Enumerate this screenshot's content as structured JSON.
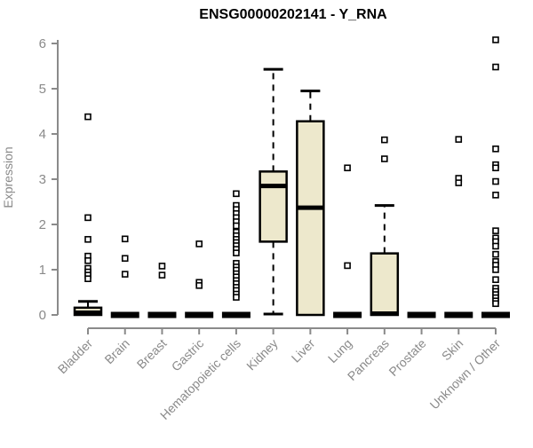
{
  "chart_data": {
    "type": "boxplot",
    "title": "ENSG00000202141 - Y_RNA",
    "ylabel": "Expression",
    "xlabel": "",
    "ylim": [
      0,
      6.1
    ],
    "yticks": [
      0,
      1,
      2,
      3,
      4,
      5,
      6
    ],
    "grid": false,
    "legend": false,
    "marker": "open-square",
    "colors": {
      "box_fill": "#EDE8CC",
      "box_border": "#000000",
      "median": "#000000",
      "whisker": "#000000",
      "axis": "#8a8a8a",
      "labels": "#8a8a8a",
      "title": "#000000",
      "background": "#ffffff"
    },
    "categories": [
      "Bladder",
      "Brain",
      "Breast",
      "Gastric",
      "Hematopoietic cells",
      "Kidney",
      "Liver",
      "Lung",
      "Pancreas",
      "Prostate",
      "Skin",
      "Unknown / Other"
    ],
    "series": [
      {
        "category": "Bladder",
        "low": 0,
        "q1": 0,
        "median": 0.05,
        "q3": 0.16,
        "high": 0.3,
        "outliers": [
          4.38,
          2.15,
          1.67,
          1.3,
          1.2,
          1.03,
          0.95,
          0.88,
          0.8
        ]
      },
      {
        "category": "Brain",
        "low": 0,
        "q1": 0,
        "median": 0,
        "q3": 0,
        "high": 0,
        "outliers": [
          1.68,
          1.25,
          0.9
        ]
      },
      {
        "category": "Breast",
        "low": 0,
        "q1": 0,
        "median": 0,
        "q3": 0,
        "high": 0,
        "outliers": [
          1.08,
          0.88
        ]
      },
      {
        "category": "Gastric",
        "low": 0,
        "q1": 0,
        "median": 0,
        "q3": 0,
        "high": 0,
        "outliers": [
          1.57,
          0.72,
          0.65
        ]
      },
      {
        "category": "Hematopoietic cells",
        "low": 0,
        "q1": 0,
        "median": 0,
        "q3": 0,
        "high": 0,
        "outliers": [
          2.68,
          2.42,
          2.33,
          2.24,
          2.15,
          2.06,
          1.97,
          1.83,
          1.75,
          1.67,
          1.6,
          1.53,
          1.45,
          1.37,
          1.14,
          1.06,
          0.99,
          0.91,
          0.84,
          0.76,
          0.69,
          0.61,
          0.54,
          0.46,
          0.39
        ]
      },
      {
        "category": "Kidney",
        "low": 0.02,
        "q1": 1.62,
        "median": 2.85,
        "q3": 3.17,
        "high": 5.43,
        "outliers": []
      },
      {
        "category": "Liver",
        "low": 0,
        "q1": 0,
        "median": 2.37,
        "q3": 4.28,
        "high": 4.95,
        "outliers": []
      },
      {
        "category": "Lung",
        "low": 0,
        "q1": 0,
        "median": 0,
        "q3": 0,
        "high": 0,
        "outliers": [
          3.25,
          1.09
        ]
      },
      {
        "category": "Pancreas",
        "low": 0,
        "q1": 0,
        "median": 0.03,
        "q3": 1.36,
        "high": 2.42,
        "outliers": [
          3.87,
          3.45
        ]
      },
      {
        "category": "Prostate",
        "low": 0,
        "q1": 0,
        "median": 0,
        "q3": 0,
        "high": 0,
        "outliers": []
      },
      {
        "category": "Skin",
        "low": 0,
        "q1": 0,
        "median": 0,
        "q3": 0,
        "high": 0,
        "outliers": [
          3.88,
          3.02,
          2.92
        ]
      },
      {
        "category": "Unknown / Other",
        "low": 0,
        "q1": 0,
        "median": 0,
        "q3": 0,
        "high": 0,
        "outliers": [
          6.08,
          5.48,
          3.67,
          3.32,
          3.25,
          2.95,
          2.65,
          1.86,
          1.7,
          1.62,
          1.52,
          1.34,
          1.18,
          1.1,
          1.0,
          0.78,
          0.59,
          0.52,
          0.45,
          0.38,
          0.31,
          0.25
        ]
      }
    ]
  }
}
